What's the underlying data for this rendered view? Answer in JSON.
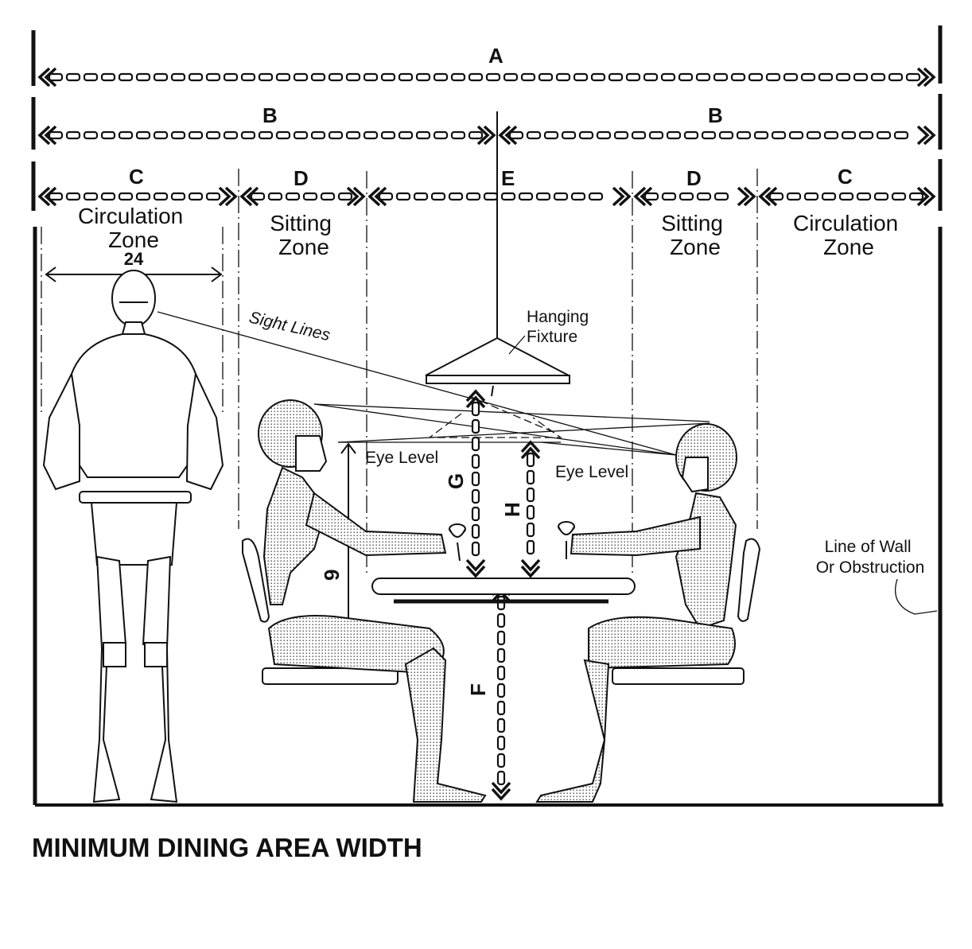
{
  "dimensions": {
    "a": "A",
    "b_left": "B",
    "b_right": "B",
    "c_left": "C",
    "c_right": "C",
    "d_left": "D",
    "d_right": "D",
    "e": "E",
    "f": "F",
    "g": "G",
    "h": "H",
    "eye_height": "9",
    "shoulder_width": "24"
  },
  "zones": {
    "circulation_left": [
      "Circulation",
      "Zone"
    ],
    "sitting_left": [
      "Sitting",
      "Zone"
    ],
    "sitting_right": [
      "Sitting",
      "Zone"
    ],
    "circulation_right": [
      "Circulation",
      "Zone"
    ]
  },
  "labels": {
    "sight_lines": "Sight Lines",
    "hanging_fixture": [
      "Hanging",
      "Fixture"
    ],
    "eye_level_left": "Eye Level",
    "eye_level_right": "Eye Level",
    "wall": [
      "Line of Wall",
      "Or Obstruction"
    ]
  },
  "title": "MINIMUM DINING AREA WIDTH"
}
